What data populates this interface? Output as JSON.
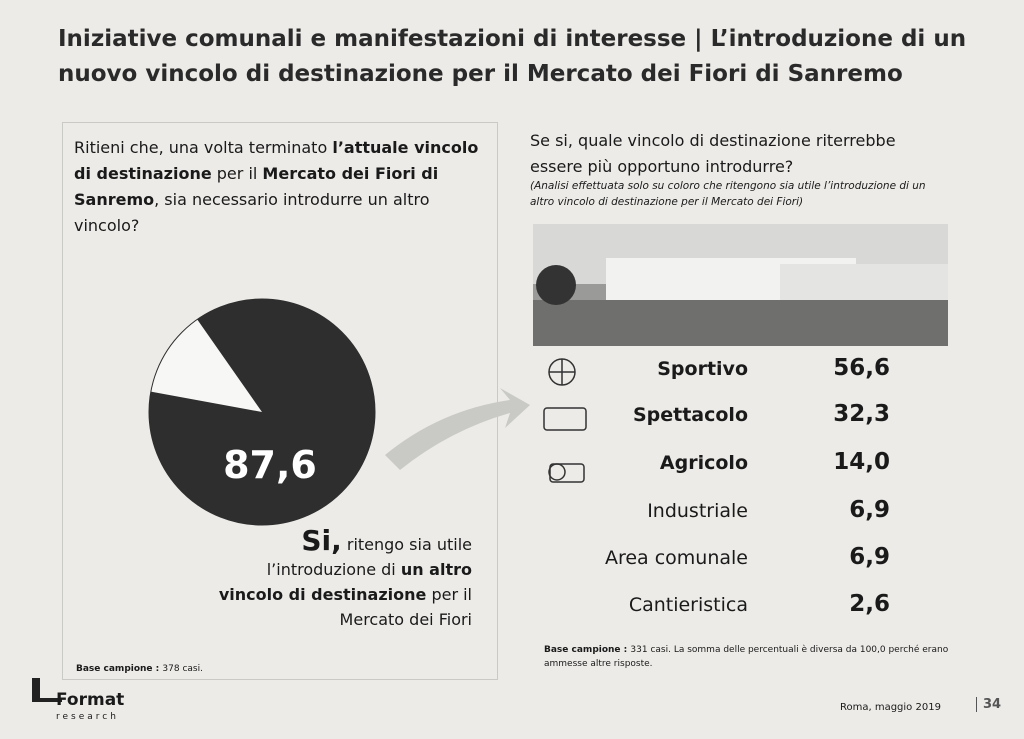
{
  "title": "Iniziative comunali e manifestazioni di interesse | L’introduzione di un nuovo vincolo di destinazione per il Mercato dei Fiori di Sanremo",
  "left": {
    "question": [
      {
        "text": "Ritieni che, una volta terminato ",
        "bold": false
      },
      {
        "text": "l’attuale vincolo di destinazione",
        "bold": true
      },
      {
        "text": " per il ",
        "bold": false
      },
      {
        "text": "Mercato dei Fiori di Sanremo",
        "bold": true
      },
      {
        "text": ", sia necessario introdurre un altro vincolo?",
        "bold": false
      }
    ],
    "pie": {
      "values": [
        87.6
      ],
      "value_labels": [
        "87,6"
      ],
      "color": "#2e2e2e"
    },
    "answer": [
      {
        "text": "Si,",
        "bold": true
      },
      {
        "text": " ritengo sia utile l’introduzione di ",
        "bold": false
      },
      {
        "text": "un altro vincolo di destinazione",
        "bold": true
      },
      {
        "text": " per il Mercato dei Fiori",
        "bold": false
      }
    ],
    "base": [
      {
        "text": "Base campione : ",
        "bold": true
      },
      {
        "text": "378 casi.",
        "bold": false
      }
    ]
  },
  "right": {
    "question": "Se si, quale vincolo di destinazione riterrebbe essere più opportuno introdurre?",
    "note": "(Analisi effettuata solo su coloro che ritengono sia utile l’introduzione di un altro vincolo di destinazione per il Mercato dei Fiori)",
    "rows": [
      {
        "name": "Sportivo",
        "value": "56,6",
        "bold": true
      },
      {
        "name": "Spettacolo",
        "value": "32,3",
        "bold": true
      },
      {
        "name": "Agricolo",
        "value": "14,0",
        "bold": true
      },
      {
        "name": "Industriale",
        "value": "6,9",
        "bold": false
      },
      {
        "name": "Area comunale",
        "value": "6,9",
        "bold": false
      },
      {
        "name": "Cantieristica",
        "value": "2,6",
        "bold": false
      }
    ],
    "base": [
      {
        "text": "Base campione : ",
        "bold": true
      },
      {
        "text": "331 casi. La somma delle percentuali è diversa da 100,0 perché erano ammesse altre risposte.",
        "bold": false
      }
    ]
  },
  "footer": {
    "logo": "Format",
    "logo_sub": "research",
    "date": "Roma, maggio 2019",
    "page": "34"
  }
}
